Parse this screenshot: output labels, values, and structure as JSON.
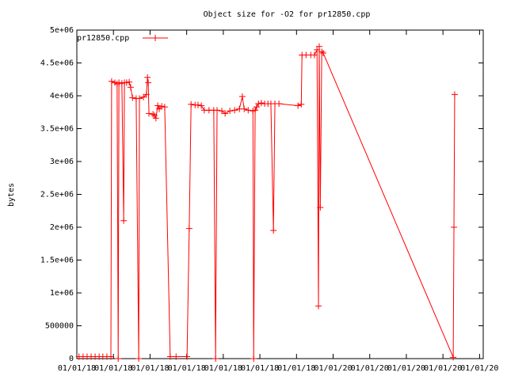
{
  "chart_data": {
    "type": "line",
    "title": "Object size for -O2 for pr12850.cpp",
    "y_label": "bytes",
    "xlim": [
      0,
      11.1
    ],
    "xticks": [
      {
        "value": 0,
        "label": "01/01/18"
      },
      {
        "value": 1,
        "label": "01/01/18"
      },
      {
        "value": 2,
        "label": "01/01/18"
      },
      {
        "value": 3,
        "label": "01/01/18"
      },
      {
        "value": 4,
        "label": "01/01/18"
      },
      {
        "value": 5,
        "label": "01/01/18"
      },
      {
        "value": 6,
        "label": "01/01/18"
      },
      {
        "value": 7,
        "label": "01/01/20"
      },
      {
        "value": 8,
        "label": "01/01/20"
      },
      {
        "value": 9,
        "label": "01/01/20"
      },
      {
        "value": 10,
        "label": "01/01/20"
      },
      {
        "value": 11,
        "label": "01/01/20"
      }
    ],
    "ylim": [
      0,
      5000000
    ],
    "yticks": [
      0,
      500000,
      {
        "value": 1000000,
        "label": "1e+06"
      },
      {
        "value": 1500000,
        "label": "1.5e+06"
      },
      {
        "value": 2000000,
        "label": "2e+06"
      },
      {
        "value": 2500000,
        "label": "2.5e+06"
      },
      {
        "value": 3000000,
        "label": "3e+06"
      },
      {
        "value": 3500000,
        "label": "3.5e+06"
      },
      {
        "value": 4000000,
        "label": "4e+06"
      },
      {
        "value": 4500000,
        "label": "4.5e+06"
      },
      {
        "value": 5000000,
        "label": "5e+06"
      }
    ],
    "legend": "top-left",
    "series": [
      {
        "name": "pr12850.cpp",
        "color": "#ff0000",
        "x": [
          0.06,
          0.17,
          0.28,
          0.39,
          0.5,
          0.61,
          0.71,
          0.82,
          0.93,
          0.95,
          1.04,
          1.1,
          1.13,
          1.15,
          1.23,
          1.28,
          1.3,
          1.36,
          1.43,
          1.47,
          1.52,
          1.62,
          1.69,
          1.71,
          1.82,
          1.9,
          1.93,
          1.95,
          1.97,
          2.08,
          2.12,
          2.16,
          2.21,
          2.25,
          2.32,
          2.4,
          2.55,
          2.71,
          3.01,
          3.07,
          3.12,
          3.23,
          3.31,
          3.4,
          3.48,
          3.61,
          3.74,
          3.79,
          3.83,
          3.96,
          4.05,
          4.18,
          4.31,
          4.44,
          4.52,
          4.57,
          4.68,
          4.81,
          4.83,
          4.87,
          4.91,
          4.96,
          5.04,
          5.13,
          5.22,
          5.3,
          5.37,
          5.41,
          5.52,
          6.04,
          6.13,
          6.15,
          6.26,
          6.39,
          6.49,
          6.56,
          6.6,
          6.62,
          6.65,
          6.69,
          6.73,
          10.28,
          10.3,
          10.32
        ],
        "values": [
          30000,
          30000,
          30000,
          30000,
          30000,
          30000,
          30000,
          30000,
          30000,
          4220000,
          4200000,
          4180000,
          0,
          4200000,
          4190000,
          2100000,
          4200000,
          4200000,
          4210000,
          4130000,
          3970000,
          3960000,
          0,
          3960000,
          3980000,
          4020000,
          4280000,
          4200000,
          3730000,
          3720000,
          3700000,
          3660000,
          3850000,
          3800000,
          3840000,
          3830000,
          30000,
          30000,
          30000,
          1980000,
          3870000,
          3860000,
          3860000,
          3850000,
          3780000,
          3780000,
          3780000,
          0,
          3780000,
          3770000,
          3730000,
          3770000,
          3780000,
          3800000,
          3990000,
          3800000,
          3780000,
          3770000,
          0,
          3780000,
          3830000,
          3880000,
          3890000,
          3880000,
          3880000,
          3880000,
          1950000,
          3880000,
          3880000,
          3850000,
          3870000,
          4620000,
          4620000,
          4620000,
          4620000,
          4700000,
          800000,
          4750000,
          2300000,
          4670000,
          4650000,
          20000,
          2000000,
          4020000
        ]
      }
    ]
  }
}
